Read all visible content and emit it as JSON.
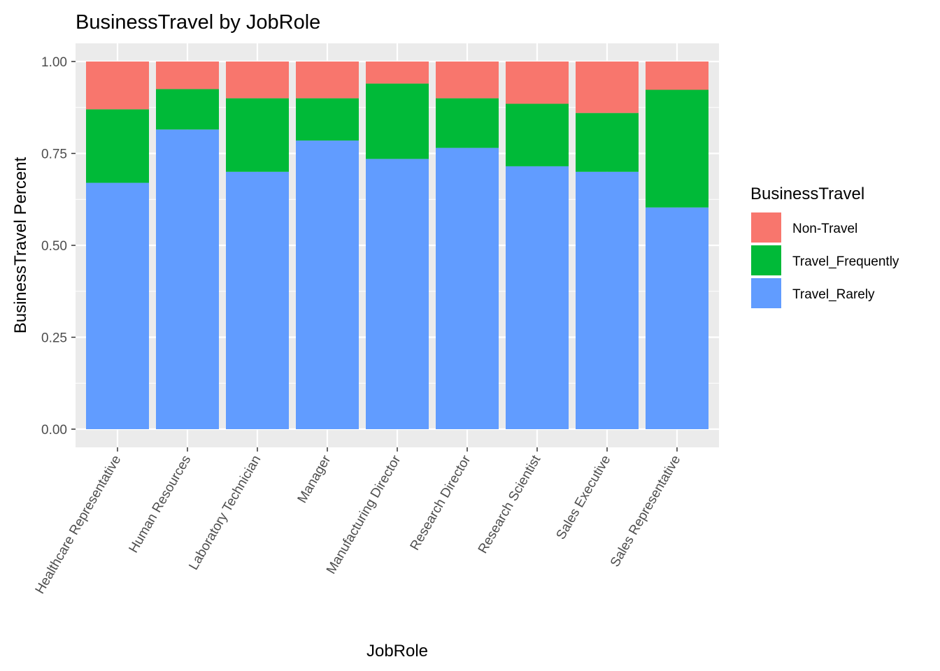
{
  "chart_data": {
    "type": "bar",
    "stacked": true,
    "title": "BusinessTravel by JobRole",
    "xlabel": "JobRole",
    "ylabel": "BusinessTravel Percent",
    "ylim": [
      0,
      1
    ],
    "y_ticks": [
      "0.00",
      "0.25",
      "0.50",
      "0.75",
      "1.00"
    ],
    "grid": true,
    "legend_position": "right",
    "legend_title": "BusinessTravel",
    "categories": [
      "Healthcare Representative",
      "Human Resources",
      "Laboratory Technician",
      "Manager",
      "Manufacturing Director",
      "Research Director",
      "Research Scientist",
      "Sales Executive",
      "Sales Representative"
    ],
    "series": [
      {
        "name": "Non-Travel",
        "color": "#F8766D",
        "values": [
          0.13,
          0.075,
          0.1,
          0.1,
          0.06,
          0.1,
          0.115,
          0.14,
          0.077
        ]
      },
      {
        "name": "Travel_Frequently",
        "color": "#00BA38",
        "values": [
          0.2,
          0.11,
          0.2,
          0.115,
          0.205,
          0.135,
          0.17,
          0.16,
          0.32
        ]
      },
      {
        "name": "Travel_Rarely",
        "color": "#619CFF",
        "values": [
          0.67,
          0.815,
          0.7,
          0.785,
          0.735,
          0.765,
          0.715,
          0.7,
          0.603
        ]
      }
    ]
  }
}
